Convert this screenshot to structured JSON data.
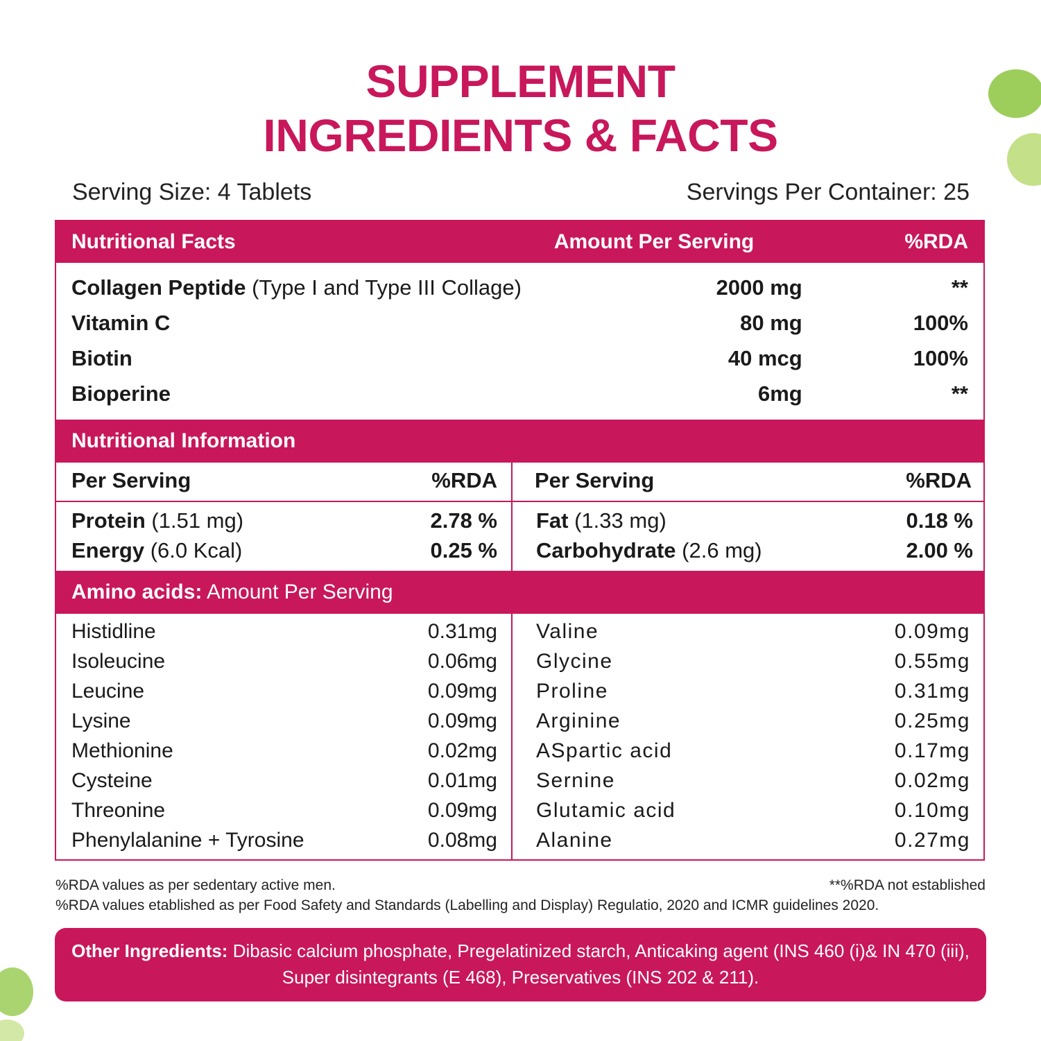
{
  "title": {
    "line1": "SUPPLEMENT",
    "line2": "INGREDIENTS & FACTS"
  },
  "serving": {
    "size": "Serving Size: 4 Tablets",
    "per_container": "Servings Per Container: 25"
  },
  "facts_header": {
    "col1": "Nutritional Facts",
    "col2": "Amount Per Serving",
    "col3": "%RDA"
  },
  "facts_rows": [
    {
      "name": "Collagen Peptide",
      "detail": " (Type I and Type III Collage)",
      "amount": "2000 mg",
      "rda": "**"
    },
    {
      "name": "Vitamin C",
      "detail": "",
      "amount": "80 mg",
      "rda": "100%"
    },
    {
      "name": "Biotin",
      "detail": "",
      "amount": "40 mcg",
      "rda": "100%"
    },
    {
      "name": "Bioperine",
      "detail": "",
      "amount": "6mg",
      "rda": "**"
    }
  ],
  "info_header": "Nutritional Information",
  "info_subheader": {
    "left_col1": "Per Serving",
    "left_col2": "%RDA",
    "right_col1": "Per Serving",
    "right_col2": "%RDA"
  },
  "info_rows": [
    {
      "lname": "Protein",
      "ldetail": " (1.51 mg)",
      "lrda": "2.78 %",
      "rname": "Fat",
      "rdetail": " (1.33 mg)",
      "rrda": "0.18 %"
    },
    {
      "lname": "Energy",
      "ldetail": " (6.0 Kcal)",
      "lrda": "0.25 %",
      "rname": "Carbohydrate",
      "rdetail": " (2.6 mg)",
      "rrda": "2.00 %"
    }
  ],
  "amino_header": {
    "bold": "Amino acids:",
    "rest": " Amount Per Serving"
  },
  "amino_left": [
    {
      "name": "Histidline",
      "value": "0.31mg"
    },
    {
      "name": "Isoleucine",
      "value": "0.06mg"
    },
    {
      "name": "Leucine",
      "value": "0.09mg"
    },
    {
      "name": "Lysine",
      "value": "0.09mg"
    },
    {
      "name": "Methionine",
      "value": "0.02mg"
    },
    {
      "name": "Cysteine",
      "value": "0.01mg"
    },
    {
      "name": "Threonine",
      "value": "0.09mg"
    },
    {
      "name": "Phenylalanine + Tyrosine",
      "value": "0.08mg"
    }
  ],
  "amino_right": [
    {
      "name": "Valine",
      "value": "0.09mg"
    },
    {
      "name": "Glycine",
      "value": "0.55mg"
    },
    {
      "name": "Proline",
      "value": "0.31mg"
    },
    {
      "name": "Arginine",
      "value": "0.25mg"
    },
    {
      "name": "ASpartic acid",
      "value": "0.17mg"
    },
    {
      "name": "Sernine",
      "value": "0.02mg"
    },
    {
      "name": "Glutamic acid",
      "value": "0.10mg"
    },
    {
      "name": "Alanine",
      "value": "0.27mg"
    }
  ],
  "notes": {
    "line1_left": "%RDA values as per sedentary active men.",
    "line1_right": "**%RDA not established",
    "line2": "%RDA values etablished as per Food Safety and Standards (Labelling and Display) Regulatio, 2020 and ICMR guidelines 2020."
  },
  "other_ingredients": {
    "label": "Other Ingredients:",
    "text": " Dibasic calcium phosphate, Pregelatinized starch, Anticaking agent (INS 460 (i)& IN 470 (iii), Super disintegrants (E 468), Preservatives (INS 202 & 211)."
  },
  "colors": {
    "accent": "#c8175b",
    "leaf": "#8cc63f"
  }
}
